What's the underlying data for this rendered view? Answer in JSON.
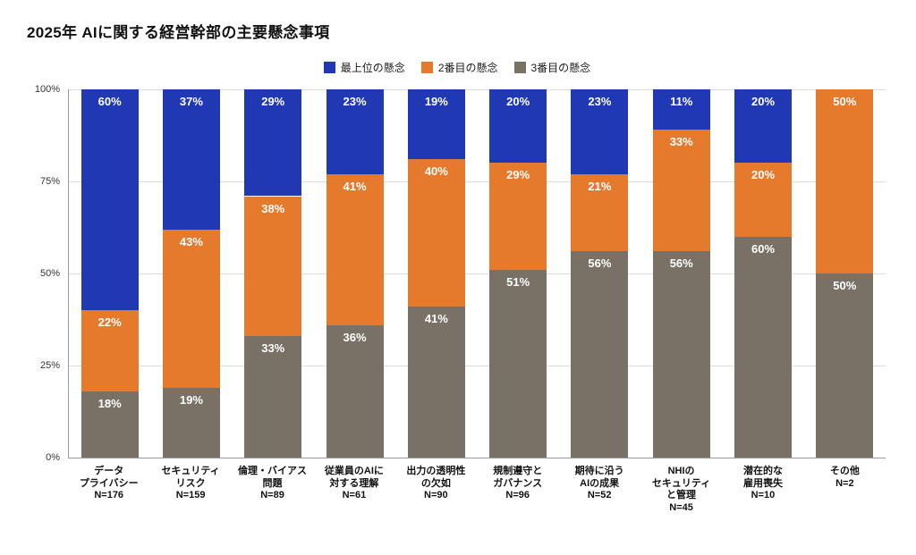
{
  "chart_data": {
    "type": "bar",
    "subtype": "stacked-100",
    "title": "2025年 AIに関する経営幹部の主要懸念事項",
    "legend_position": "top-center",
    "grid": true,
    "ylim": [
      0,
      100
    ],
    "colors": {
      "top": "#2038b4",
      "second": "#e57a2c",
      "third": "#797165"
    },
    "legend": [
      {
        "key": "top",
        "label": "最上位の懸念",
        "color": "#2038b4"
      },
      {
        "key": "second",
        "label": "2番目の懸念",
        "color": "#e57a2c"
      },
      {
        "key": "third",
        "label": "3番目の懸念",
        "color": "#797165"
      }
    ],
    "y_ticks": [
      {
        "label": "0%",
        "value": 0
      },
      {
        "label": "25%",
        "value": 25
      },
      {
        "label": "50%",
        "value": 50
      },
      {
        "label": "75%",
        "value": 75
      },
      {
        "label": "100%",
        "value": 100
      }
    ],
    "bars": [
      {
        "label_lines": [
          "データ",
          "プライバシー",
          "N=176"
        ],
        "top": 60,
        "second": 22,
        "third": 18
      },
      {
        "label_lines": [
          "セキュリティ",
          "リスク",
          "N=159"
        ],
        "top": 37,
        "second": 43,
        "third": 19
      },
      {
        "label_lines": [
          "倫理・バイアス",
          "問題",
          "N=89"
        ],
        "top": 29,
        "second": 38,
        "third": 33
      },
      {
        "label_lines": [
          "従業員のAIに",
          "対する理解",
          "N=61"
        ],
        "top": 23,
        "second": 41,
        "third": 36
      },
      {
        "label_lines": [
          "出力の透明性",
          "の欠如",
          "N=90"
        ],
        "top": 19,
        "second": 40,
        "third": 41
      },
      {
        "label_lines": [
          "規制遵守と",
          "ガバナンス",
          "N=96"
        ],
        "top": 20,
        "second": 29,
        "third": 51
      },
      {
        "label_lines": [
          "期待に沿う",
          "AIの成果",
          "N=52"
        ],
        "top": 23,
        "second": 21,
        "third": 56
      },
      {
        "label_lines": [
          "NHIの",
          "セキュリティ",
          "と管理",
          "N=45"
        ],
        "top": 11,
        "second": 33,
        "third": 56
      },
      {
        "label_lines": [
          "潜在的な",
          "雇用喪失",
          "N=10"
        ],
        "top": 20,
        "second": 20,
        "third": 60
      },
      {
        "label_lines": [
          "その他",
          "N=2"
        ],
        "top": null,
        "second": 50,
        "third": 50
      }
    ]
  }
}
